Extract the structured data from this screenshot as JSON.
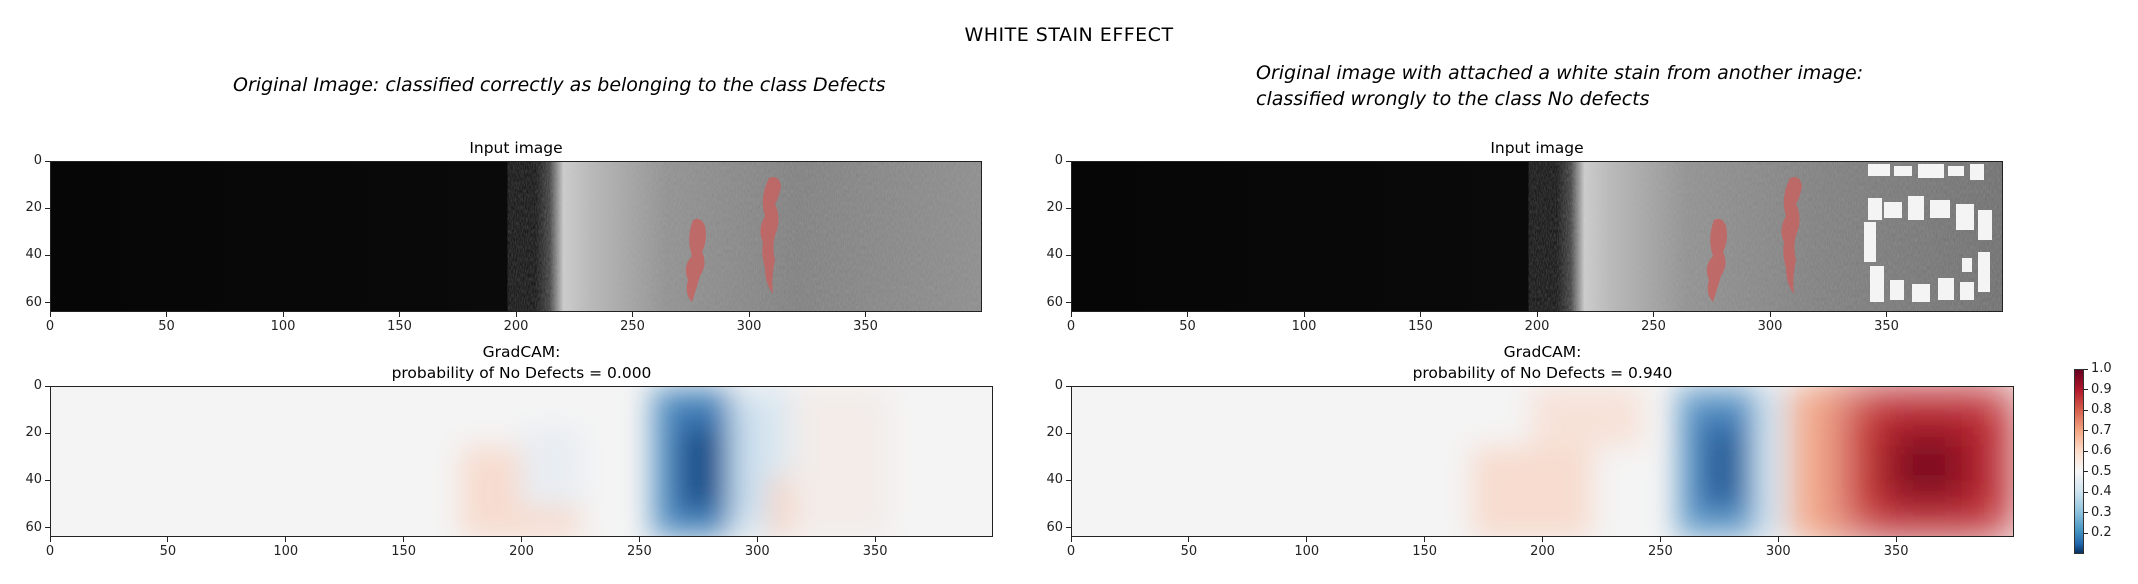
{
  "figure": {
    "title": "WHITE STAIN EFFECT"
  },
  "captions": {
    "left": "Original Image: classified correctly as belonging to the class Defects",
    "right_line1": "Original image with attached a white stain from another image:",
    "right_line2": "classified wrongly to the class No defects"
  },
  "panels": {
    "input_left": {
      "title": "Input image"
    },
    "input_right": {
      "title": "Input image"
    },
    "gradcam_left": {
      "title_line1": "GradCAM:",
      "title_line2": "probability of No Defects = 0.000"
    },
    "gradcam_right": {
      "title_line1": "GradCAM:",
      "title_line2": "probability of No Defects = 0.940"
    }
  },
  "axes": {
    "x_ticks": [
      "0",
      "50",
      "100",
      "150",
      "200",
      "250",
      "300",
      "350"
    ],
    "y_ticks": [
      "0",
      "20",
      "40",
      "60"
    ]
  },
  "colorbar": {
    "ticks": [
      "1.0",
      "0.9",
      "0.8",
      "0.7",
      "0.6",
      "0.5",
      "0.4",
      "0.3",
      "0.2"
    ],
    "colormap": "RdBu_r"
  },
  "chart_data": [
    {
      "type": "heatmap",
      "name_hint": "input-left",
      "x_range": [
        0,
        400
      ],
      "y_range": [
        0,
        64
      ],
      "xticks": [
        0,
        50,
        100,
        150,
        200,
        250,
        300,
        350
      ],
      "yticks": [
        0,
        20,
        40,
        60
      ]
    },
    {
      "type": "heatmap",
      "name_hint": "input-right",
      "x_range": [
        0,
        400
      ],
      "y_range": [
        0,
        64
      ],
      "xticks": [
        0,
        50,
        100,
        150,
        200,
        250,
        300,
        350
      ],
      "yticks": [
        0,
        20,
        40,
        60
      ]
    },
    {
      "type": "heatmap",
      "name_hint": "gradcam-left",
      "x_range": [
        0,
        400
      ],
      "y_range": [
        0,
        64
      ],
      "xticks": [
        0,
        50,
        100,
        150,
        200,
        250,
        300,
        350
      ],
      "yticks": [
        0,
        20,
        40,
        60
      ],
      "colormap": "RdBu_r"
    },
    {
      "type": "heatmap",
      "name_hint": "gradcam-right",
      "x_range": [
        0,
        400
      ],
      "y_range": [
        0,
        64
      ],
      "xticks": [
        0,
        50,
        100,
        150,
        200,
        250,
        300,
        350
      ],
      "yticks": [
        0,
        20,
        40,
        60
      ],
      "colormap": "RdBu_r"
    }
  ]
}
